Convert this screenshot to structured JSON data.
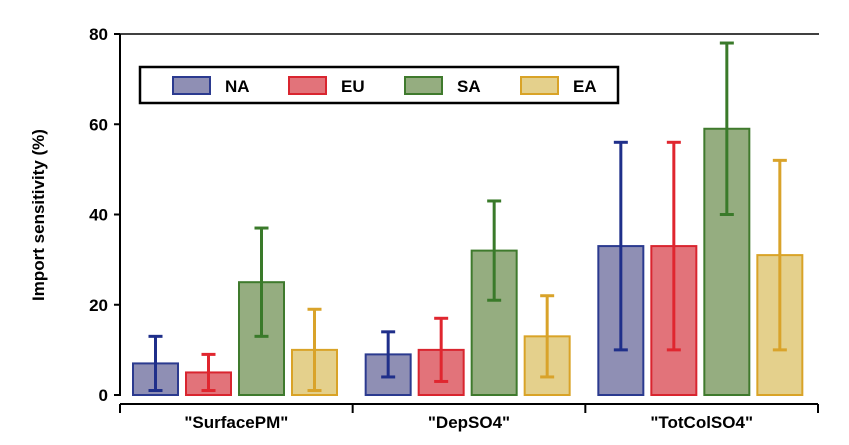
{
  "chart_data": {
    "type": "bar",
    "title": "",
    "xlabel": "",
    "ylabel": "Import sensitivity (%)",
    "ylim": [
      0,
      80
    ],
    "yticks": [
      0,
      20,
      40,
      60,
      80
    ],
    "grid": false,
    "legend_position": "top-left",
    "categories": [
      "\"SurfacePM\"",
      "\"DepSO4\"",
      "\"TotColSO4\""
    ],
    "series": [
      {
        "name": "NA",
        "fill": "#8f8fb4",
        "stroke": "#2b3a8f",
        "err": "#1f2f8a",
        "values": [
          7,
          9,
          33
        ],
        "err_low": [
          1,
          4,
          10
        ],
        "err_high": [
          13,
          14,
          56
        ]
      },
      {
        "name": "EU",
        "fill": "#e2737a",
        "stroke": "#d9252f",
        "err": "#e0262f",
        "values": [
          5,
          10,
          33
        ],
        "err_low": [
          1,
          3,
          10
        ],
        "err_high": [
          9,
          17,
          56
        ]
      },
      {
        "name": "SA",
        "fill": "#95ad80",
        "stroke": "#3f7a2d",
        "err": "#3a7a2a",
        "values": [
          25,
          32,
          59
        ],
        "err_low": [
          13,
          21,
          40
        ],
        "err_high": [
          37,
          43,
          78
        ]
      },
      {
        "name": "EA",
        "fill": "#e4d08c",
        "stroke": "#d9a327",
        "err": "#d9a32a",
        "values": [
          10,
          13,
          31
        ],
        "err_low": [
          1,
          4,
          10
        ],
        "err_high": [
          19,
          22,
          52
        ]
      }
    ]
  }
}
